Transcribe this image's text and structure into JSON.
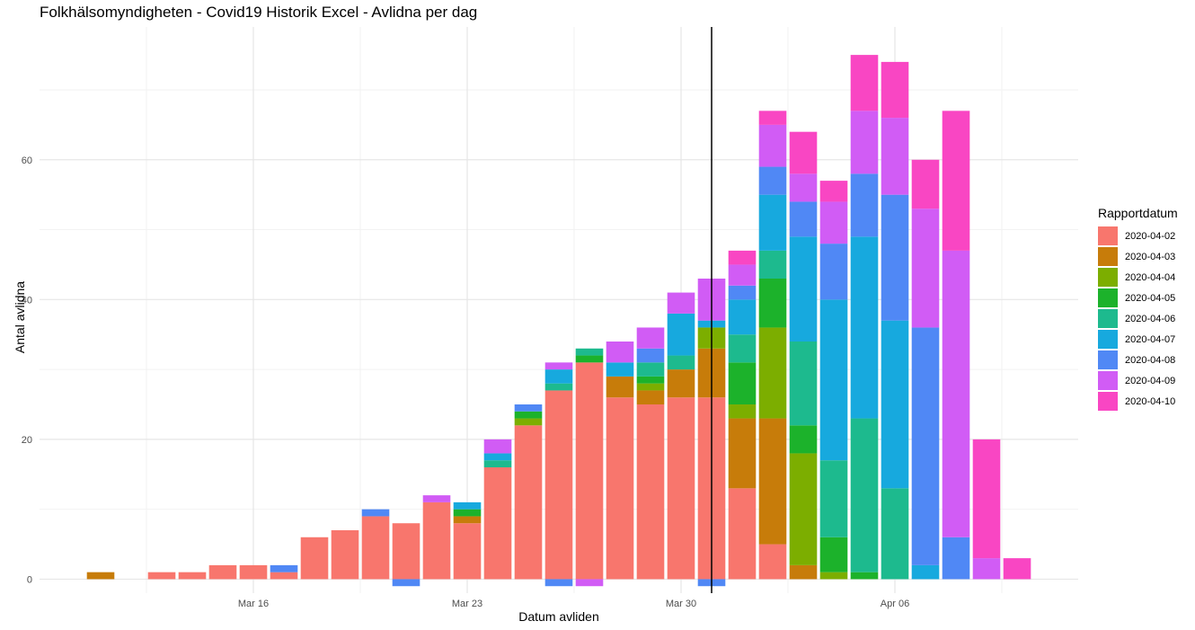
{
  "title": "Folkhälsomyndigheten - Covid19 Historik Excel - Avlidna per dag",
  "chart_data": {
    "type": "bar",
    "stacked": true,
    "title": "Folkhälsomyndigheten - Covid19 Historik Excel - Avlidna per dag",
    "xlabel": "Datum avliden",
    "ylabel": "Antal avlidna",
    "x_ticks": [
      "Mar 16",
      "Mar 23",
      "Mar 30",
      "Apr 06"
    ],
    "y_ticks": [
      0,
      20,
      40,
      60
    ],
    "ylim": [
      -2,
      79
    ],
    "xlim": [
      "2020-03-09",
      "2020-04-12"
    ],
    "grid": true,
    "legend_position": "right",
    "legend_title": "Rapportdatum",
    "vline": "2020-03-31",
    "categories": [
      "2020-03-11",
      "2020-03-12",
      "2020-03-13",
      "2020-03-14",
      "2020-03-15",
      "2020-03-16",
      "2020-03-17",
      "2020-03-18",
      "2020-03-19",
      "2020-03-20",
      "2020-03-21",
      "2020-03-22",
      "2020-03-23",
      "2020-03-24",
      "2020-03-25",
      "2020-03-26",
      "2020-03-27",
      "2020-03-28",
      "2020-03-29",
      "2020-03-30",
      "2020-03-31",
      "2020-04-01",
      "2020-04-02",
      "2020-04-03",
      "2020-04-04",
      "2020-04-05",
      "2020-04-06",
      "2020-04-07",
      "2020-04-08",
      "2020-04-09",
      "2020-04-10"
    ],
    "series": [
      {
        "name": "2020-04-02",
        "color": "#F8766D",
        "values": [
          0,
          0,
          1,
          1,
          2,
          2,
          1,
          6,
          7,
          9,
          8,
          11,
          8,
          16,
          22,
          27,
          31,
          26,
          25,
          26,
          26,
          13,
          5,
          0,
          0,
          0,
          0,
          0,
          0,
          0,
          0
        ]
      },
      {
        "name": "2020-04-03",
        "color": "#C77C0A",
        "values": [
          1,
          0,
          0,
          0,
          0,
          0,
          0,
          0,
          0,
          0,
          0,
          0,
          1,
          0,
          0,
          0,
          0,
          3,
          2,
          4,
          7,
          10,
          18,
          2,
          0,
          0,
          0,
          0,
          0,
          0,
          0
        ]
      },
      {
        "name": "2020-04-04",
        "color": "#7CAE00",
        "values": [
          0,
          0,
          0,
          0,
          0,
          0,
          0,
          0,
          0,
          0,
          0,
          0,
          0,
          0,
          1,
          0,
          0,
          0,
          1,
          0,
          3,
          2,
          13,
          16,
          1,
          0,
          0,
          0,
          0,
          0,
          0
        ]
      },
      {
        "name": "2020-04-05",
        "color": "#1CB22B",
        "values": [
          0,
          0,
          0,
          0,
          0,
          0,
          0,
          0,
          0,
          0,
          0,
          0,
          1,
          0,
          1,
          0,
          1,
          0,
          1,
          0,
          0,
          6,
          7,
          4,
          5,
          1,
          0,
          0,
          0,
          0,
          0
        ]
      },
      {
        "name": "2020-04-06",
        "color": "#1DBA8E",
        "values": [
          0,
          0,
          0,
          0,
          0,
          0,
          0,
          0,
          0,
          0,
          0,
          0,
          0,
          1,
          0,
          1,
          1,
          0,
          2,
          2,
          0,
          4,
          4,
          12,
          11,
          22,
          13,
          0,
          0,
          0,
          0
        ]
      },
      {
        "name": "2020-04-07",
        "color": "#17A9DE",
        "values": [
          0,
          0,
          0,
          0,
          0,
          0,
          0,
          0,
          0,
          0,
          0,
          0,
          1,
          1,
          0,
          2,
          0,
          2,
          0,
          6,
          1,
          5,
          8,
          15,
          23,
          26,
          24,
          2,
          0,
          0,
          0
        ]
      },
      {
        "name": "2020-04-08",
        "color": "#5088F5",
        "values": [
          0,
          0,
          0,
          0,
          0,
          0,
          1,
          0,
          0,
          1,
          -1,
          0,
          0,
          0,
          1,
          -1,
          0,
          0,
          2,
          0,
          -1,
          2,
          4,
          5,
          8,
          9,
          18,
          34,
          6,
          0,
          0
        ]
      },
      {
        "name": "2020-04-09",
        "color": "#D15CF5",
        "values": [
          0,
          0,
          0,
          0,
          0,
          0,
          0,
          0,
          0,
          0,
          0,
          1,
          0,
          2,
          0,
          1,
          -1,
          3,
          3,
          3,
          6,
          3,
          6,
          4,
          6,
          9,
          11,
          17,
          41,
          3,
          0
        ]
      },
      {
        "name": "2020-04-10",
        "color": "#F946C3",
        "values": [
          0,
          0,
          0,
          0,
          0,
          0,
          0,
          0,
          0,
          0,
          0,
          0,
          0,
          0,
          0,
          0,
          0,
          0,
          0,
          0,
          0,
          2,
          2,
          6,
          3,
          8,
          8,
          7,
          20,
          17,
          3
        ]
      }
    ]
  }
}
